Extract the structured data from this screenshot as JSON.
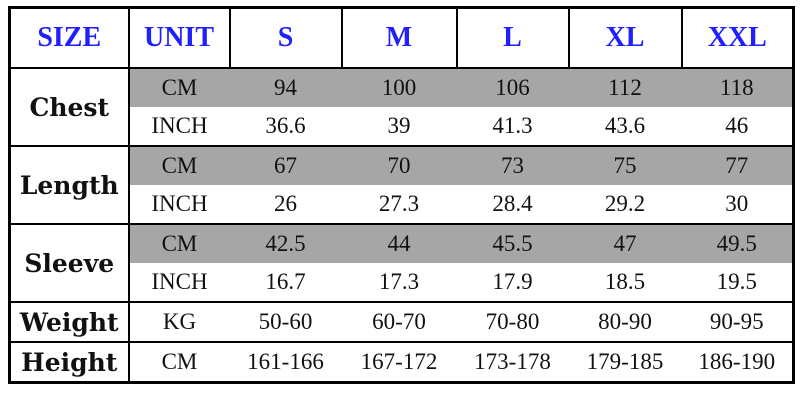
{
  "header": [
    "SIZE",
    "UNIT",
    "S",
    "M",
    "L",
    "XL",
    "XXL"
  ],
  "rows": [
    {
      "label": "Chest",
      "units": [
        {
          "unit": "CM",
          "values": [
            "94",
            "100",
            "106",
            "112",
            "118"
          ]
        },
        {
          "unit": "INCH",
          "values": [
            "36.6",
            "39",
            "41.3",
            "43.6",
            "46"
          ]
        }
      ]
    },
    {
      "label": "Length",
      "units": [
        {
          "unit": "CM",
          "values": [
            "67",
            "70",
            "73",
            "75",
            "77"
          ]
        },
        {
          "unit": "INCH",
          "values": [
            "26",
            "27.3",
            "28.4",
            "29.2",
            "30"
          ]
        }
      ]
    },
    {
      "label": "Sleeve",
      "units": [
        {
          "unit": "CM",
          "values": [
            "42.5",
            "44",
            "45.5",
            "47",
            "49.5"
          ]
        },
        {
          "unit": "INCH",
          "values": [
            "16.7",
            "17.3",
            "17.9",
            "18.5",
            "19.5"
          ]
        }
      ]
    },
    {
      "label": "Weight",
      "units": [
        {
          "unit": "KG",
          "values": [
            "50-60",
            "60-70",
            "70-80",
            "80-90",
            "90-95"
          ]
        }
      ]
    },
    {
      "label": "Height",
      "units": [
        {
          "unit": "CM",
          "values": [
            "161-166",
            "167-172",
            "173-178",
            "179-185",
            "186-190"
          ]
        }
      ]
    }
  ]
}
